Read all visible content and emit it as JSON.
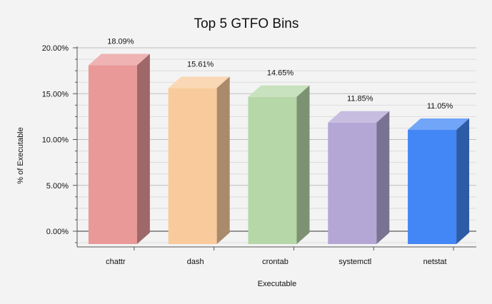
{
  "chart_data": {
    "type": "bar",
    "title": "Top 5 GTFO Bins",
    "xlabel": "Executable",
    "ylabel": "% of Executable",
    "categories": [
      "chattr",
      "dash",
      "crontab",
      "systemctl",
      "netstat"
    ],
    "values": [
      18.09,
      15.61,
      14.65,
      11.85,
      11.05
    ],
    "data_labels": [
      "18.09%",
      "15.61%",
      "14.65%",
      "11.85%",
      "11.05%"
    ],
    "yticks": [
      "0.00%",
      "5.00%",
      "10.00%",
      "15.00%",
      "20.00%"
    ],
    "ylim": [
      0,
      20
    ],
    "grid": true,
    "style": "3d-bar",
    "colors": [
      "#ea9999",
      "#f9cb9c",
      "#b6d7a8",
      "#b4a7d6",
      "#4287f5"
    ]
  }
}
